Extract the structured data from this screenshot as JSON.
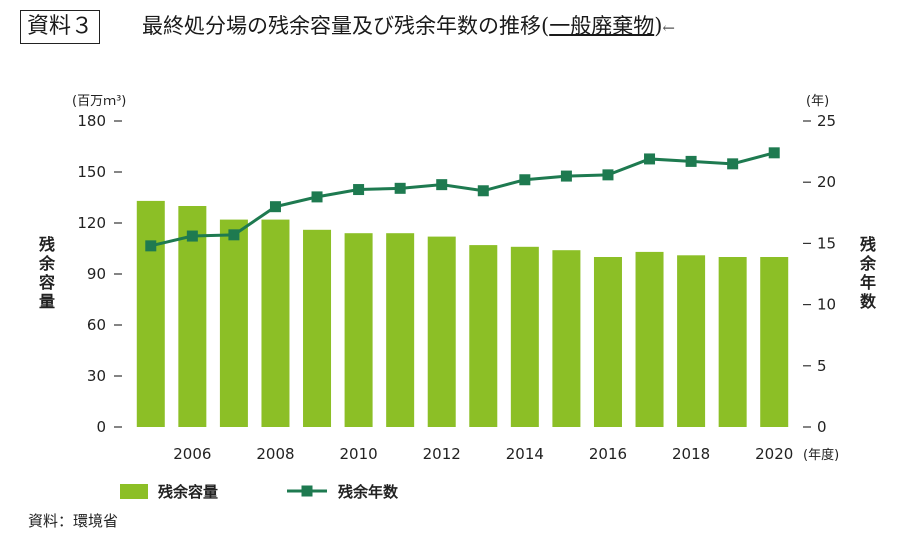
{
  "header": {
    "doc_label": "資料３",
    "title_prefix": "最終処分場の残余容量及び残余年数の推移",
    "title_paren_open": "(",
    "title_underlined": "一般廃棄物",
    "title_paren_close": ")",
    "title_mark": "←"
  },
  "chart_data": {
    "type": "bar+line",
    "categories": [
      "2005",
      "2006",
      "2007",
      "2008",
      "2009",
      "2010",
      "2011",
      "2012",
      "2013",
      "2014",
      "2015",
      "2016",
      "2017",
      "2018",
      "2019",
      "2020"
    ],
    "x_tick_labels": [
      "",
      "2006",
      "",
      "2008",
      "",
      "2010",
      "",
      "2012",
      "",
      "2014",
      "",
      "2016",
      "",
      "2018",
      "",
      "2020"
    ],
    "series": [
      {
        "name": "残余容量",
        "type": "bar",
        "axis": "left",
        "color": "#8cbf26",
        "values": [
          133,
          130,
          122,
          122,
          116,
          114,
          114,
          112,
          107,
          106,
          104,
          100,
          103,
          101,
          100,
          100
        ]
      },
      {
        "name": "残余年数",
        "type": "line",
        "axis": "right",
        "color": "#1e7a50",
        "values": [
          14.8,
          15.6,
          15.7,
          18.0,
          18.8,
          19.4,
          19.5,
          19.8,
          19.3,
          20.2,
          20.5,
          20.6,
          21.9,
          21.7,
          21.5,
          22.4
        ]
      }
    ],
    "y_left": {
      "unit_label": "(百万ｍ³)",
      "title": "残余容量",
      "ylim": [
        0,
        180
      ],
      "ticks": [
        0,
        30,
        60,
        90,
        120,
        150,
        180
      ]
    },
    "y_right": {
      "unit_label": "(年)",
      "title": "残余年数",
      "ylim": [
        0,
        25
      ],
      "ticks": [
        0,
        5,
        10,
        15,
        20,
        25
      ]
    },
    "x_unit_label": "(年度)",
    "legend": {
      "placement": "bottom-left",
      "bar_label": "残余容量",
      "line_label": "残余年数"
    },
    "source": "資料：環境省"
  }
}
